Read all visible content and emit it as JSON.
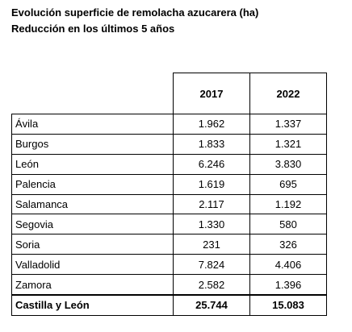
{
  "header": {
    "title": "Evolución superficie de remolacha azucarera (ha)",
    "subtitle": "Reducción en los últimos 5 años"
  },
  "table": {
    "columns": [
      "2017",
      "2022"
    ],
    "rows": [
      [
        "Ávila",
        "1.962",
        "1.337"
      ],
      [
        "Burgos",
        "1.833",
        "1.321"
      ],
      [
        "León",
        "6.246",
        "3.830"
      ],
      [
        "Palencia",
        "1.619",
        "695"
      ],
      [
        "Salamanca",
        "2.117",
        "1.192"
      ],
      [
        "Segovia",
        "1.330",
        "580"
      ],
      [
        "Soria",
        "231",
        "326"
      ],
      [
        "Valladolid",
        "7.824",
        "4.406"
      ],
      [
        "Zamora",
        "2.582",
        "1.396"
      ]
    ],
    "total": [
      "Castilla y León",
      "25.744",
      "15.083"
    ]
  }
}
